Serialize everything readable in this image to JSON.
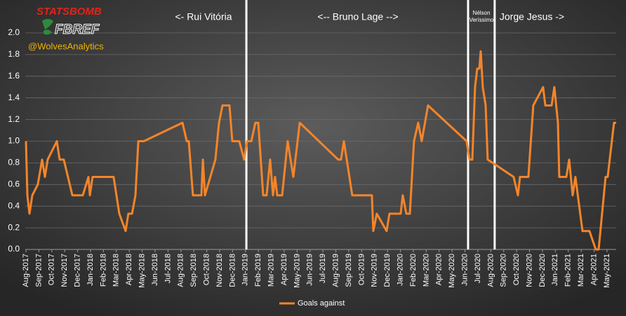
{
  "chart_data": {
    "type": "line",
    "logos": [
      "STATSBOMB",
      "FBREF"
    ],
    "handle": "@WolvesAnalytics",
    "annotations": [
      "<- Rui Vitória",
      "<-- Bruno Lage -->",
      "Nélson",
      "Veríssimo",
      "Jorge Jesus ->"
    ],
    "dividers": [
      17.07,
      34.24,
      36.3
    ],
    "x": [
      0,
      0.11,
      0.27,
      0.49,
      0.92,
      1.25,
      1.47,
      1.68,
      2.39,
      2.61,
      2.93,
      3.59,
      4.4,
      4.84,
      4.95,
      5.16,
      6.79,
      7.23,
      7.72,
      7.93,
      8.21,
      8.48,
      8.7,
      9.13,
      12.12,
      12.45,
      12.61,
      12.93,
      13.59,
      13.7,
      13.86,
      14.67,
      14.95,
      15.22,
      15.76,
      15.98,
      16.52,
      16.9,
      17.12,
      17.45,
      17.77,
      17.99,
      18.37,
      18.64,
      18.91,
      19.13,
      19.29,
      19.46,
      19.84,
      20.27,
      20.71,
      21.2,
      24.18,
      24.4,
      24.62,
      25.05,
      25.27,
      26.79,
      26.9,
      27.17,
      27.93,
      28.15,
      29.02,
      29.18,
      29.46,
      29.73,
      30.05,
      30.38,
      30.65,
      31.14,
      34.13,
      34.35,
      34.57,
      34.78,
      34.95,
      35.11,
      35.22,
      35.38,
      35.6,
      35.76,
      37.77,
      38.1,
      38.26,
      38.91,
      39.29,
      40.05,
      40.22,
      40.71,
      40.92,
      41.2,
      41.3,
      41.85,
      42.07,
      42.34,
      42.55,
      43.1,
      43.64,
      44.13,
      44.35,
      44.62,
      44.89,
      45.05,
      45.54,
      45.71
    ],
    "series": [
      {
        "name": "Goals against",
        "color": "#f4852a",
        "values": [
          1.0,
          0.5,
          0.33,
          0.5,
          0.6,
          0.83,
          0.67,
          0.83,
          1.0,
          0.83,
          0.83,
          0.5,
          0.5,
          0.67,
          0.5,
          0.67,
          0.67,
          0.33,
          0.17,
          0.33,
          0.33,
          0.5,
          1.0,
          1.0,
          1.17,
          1.0,
          1.0,
          0.5,
          0.5,
          0.83,
          0.5,
          0.83,
          1.17,
          1.33,
          1.33,
          1.0,
          1.0,
          0.83,
          1.0,
          1.0,
          1.17,
          1.17,
          0.5,
          0.5,
          0.83,
          0.5,
          0.67,
          0.5,
          0.5,
          1.0,
          0.67,
          1.17,
          0.83,
          0.83,
          1.0,
          0.67,
          0.5,
          0.5,
          0.17,
          0.33,
          0.17,
          0.33,
          0.33,
          0.5,
          0.33,
          0.33,
          1.0,
          1.17,
          1.0,
          1.33,
          1.0,
          0.83,
          0.83,
          1.5,
          1.67,
          1.67,
          1.83,
          1.5,
          1.33,
          0.83,
          0.67,
          0.5,
          0.67,
          0.67,
          1.33,
          1.5,
          1.33,
          1.33,
          1.5,
          1.17,
          0.67,
          0.67,
          0.83,
          0.5,
          0.67,
          0.17,
          0.17,
          0.0,
          0.0,
          0.33,
          0.67,
          0.67,
          1.17,
          1.17
        ]
      }
    ],
    "xlim": [
      0,
      45.71
    ],
    "xticks": [
      {
        "value": 0,
        "label": "Aug-2017"
      },
      {
        "value": 1,
        "label": "Sep-2017"
      },
      {
        "value": 2,
        "label": "Oct-2017"
      },
      {
        "value": 3,
        "label": "Nov-2017"
      },
      {
        "value": 4,
        "label": "Dec-2017"
      },
      {
        "value": 5,
        "label": "Jan-2018"
      },
      {
        "value": 6,
        "label": "Feb-2018"
      },
      {
        "value": 7,
        "label": "Mar-2018"
      },
      {
        "value": 8,
        "label": "Apr-2018"
      },
      {
        "value": 9,
        "label": "May-2018"
      },
      {
        "value": 10,
        "label": "Jun-2018"
      },
      {
        "value": 11,
        "label": "Jul-2018"
      },
      {
        "value": 12,
        "label": "Aug-2018"
      },
      {
        "value": 13,
        "label": "Sep-2018"
      },
      {
        "value": 14,
        "label": "Oct-2018"
      },
      {
        "value": 15,
        "label": "Nov-2018"
      },
      {
        "value": 16,
        "label": "Dec-2018"
      },
      {
        "value": 17,
        "label": "Jan-2019"
      },
      {
        "value": 18,
        "label": "Feb-2019"
      },
      {
        "value": 19,
        "label": "Mar-2019"
      },
      {
        "value": 20,
        "label": "Apr-2019"
      },
      {
        "value": 21,
        "label": "May-2019"
      },
      {
        "value": 22,
        "label": "Jun-2019"
      },
      {
        "value": 23,
        "label": "Jul-2019"
      },
      {
        "value": 24,
        "label": "Aug-2019"
      },
      {
        "value": 25,
        "label": "Sep-2019"
      },
      {
        "value": 26,
        "label": "Oct-2019"
      },
      {
        "value": 27,
        "label": "Nov-2019"
      },
      {
        "value": 28,
        "label": "Dec-2019"
      },
      {
        "value": 29,
        "label": "Jan-2020"
      },
      {
        "value": 30,
        "label": "Feb-2020"
      },
      {
        "value": 31,
        "label": "Mar-2020"
      },
      {
        "value": 32,
        "label": "Apr-2020"
      },
      {
        "value": 33,
        "label": "May-2020"
      },
      {
        "value": 34,
        "label": "Jun-2020"
      },
      {
        "value": 35,
        "label": "Jul-2020"
      },
      {
        "value": 36,
        "label": "Aug-2020"
      },
      {
        "value": 37,
        "label": "Sep-2020"
      },
      {
        "value": 38,
        "label": "Oct-2020"
      },
      {
        "value": 39,
        "label": "Nov-2020"
      },
      {
        "value": 40,
        "label": "Dec-2020"
      },
      {
        "value": 41,
        "label": "Jan-2021"
      },
      {
        "value": 42,
        "label": "Feb-2021"
      },
      {
        "value": 43,
        "label": "Mar-2021"
      },
      {
        "value": 44,
        "label": "Apr-2021"
      },
      {
        "value": 45,
        "label": "May-2021"
      }
    ],
    "ylim": [
      0,
      2.0
    ],
    "yticks": [
      {
        "value": 0,
        "label": "0.0"
      },
      0.2,
      0.4,
      0.6,
      0.8,
      {
        "value": 1,
        "label": "1.0"
      },
      1.2,
      1.4,
      1.6,
      1.8,
      {
        "value": 2,
        "label": "2.0"
      }
    ],
    "grid": true,
    "legend": "bottom"
  }
}
